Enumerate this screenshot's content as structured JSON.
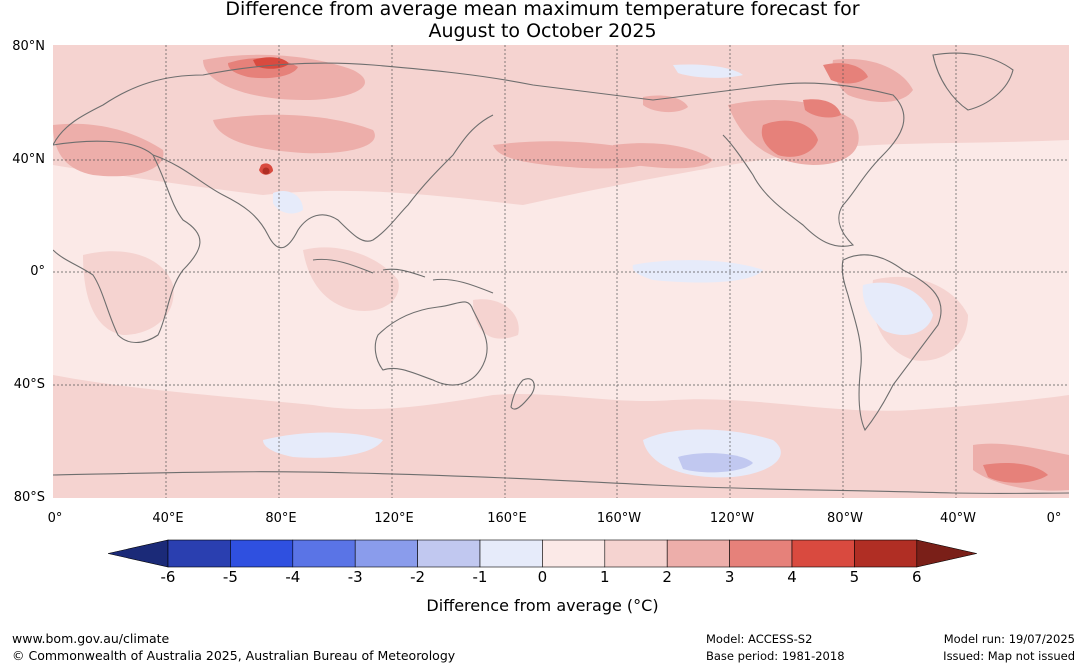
{
  "title_line1": "Difference from average mean maximum temperature forecast for",
  "title_line2": "August to October 2025",
  "map": {
    "lat_labels": [
      "80°N",
      "40°N",
      "0°",
      "40°S",
      "80°S"
    ],
    "lon_labels": [
      "0°",
      "40°E",
      "80°E",
      "120°E",
      "160°E",
      "160°W",
      "120°W",
      "80°W",
      "40°W",
      "0°"
    ],
    "colors": {
      "ocean_base": "#fbe9e7",
      "land_base": "#fbe9e7",
      "weak_warm": "#f5d3d0",
      "mid_warm": "#edaeaa",
      "warm": "#e6817a",
      "hot": "#d94a3f",
      "hotter": "#b02e24",
      "weak_cool": "#e6ebfa",
      "cool": "#c1c8f0",
      "coast": "#6e6e6e",
      "grid": "#555555"
    }
  },
  "colorbar": {
    "ticks": [
      "-6",
      "-5",
      "-4",
      "-3",
      "-2",
      "-1",
      "0",
      "1",
      "2",
      "3",
      "4",
      "5",
      "6"
    ],
    "under_color": "#1b2a78",
    "over_color": "#7a1f18",
    "bins": [
      "#2a3fb0",
      "#2f50e0",
      "#5a74e6",
      "#8a9cec",
      "#c1c8f0",
      "#e6ebfa",
      "#fbe9e7",
      "#f5d3d0",
      "#edaeaa",
      "#e6817a",
      "#d94a3f",
      "#b02e24"
    ],
    "label": "Difference from average (°C)"
  },
  "footer": {
    "website": "www.bom.gov.au/climate",
    "copyright": "© Commonwealth of Australia 2025, Australian Bureau of Meteorology",
    "model": "Model: ACCESS-S2",
    "base_period": "Base period: 1981-2018",
    "model_run": "Model run: 19/07/2025",
    "issued": "Issued: Map not issued"
  }
}
